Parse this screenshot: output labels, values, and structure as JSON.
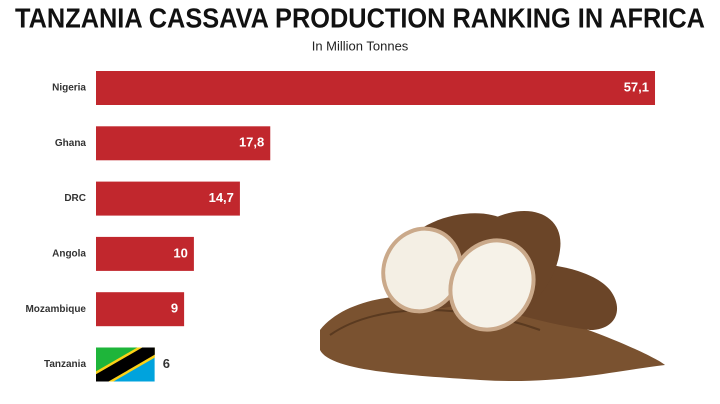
{
  "chart_data": {
    "type": "bar",
    "orientation": "horizontal",
    "title": "TANZANIA CASSAVA PRODUCTION RANKING IN AFRICA",
    "subtitle": "In Million Tonnes",
    "categories": [
      "Nigeria",
      "Ghana",
      "DRC",
      "Angola",
      "Mozambique",
      "Tanzania"
    ],
    "values": [
      57.1,
      17.8,
      14.7,
      10,
      9,
      6
    ],
    "value_labels": [
      "57,1",
      "17,8",
      "14,7",
      "10",
      "9",
      "6"
    ],
    "color": "#c1272d"
  }
}
